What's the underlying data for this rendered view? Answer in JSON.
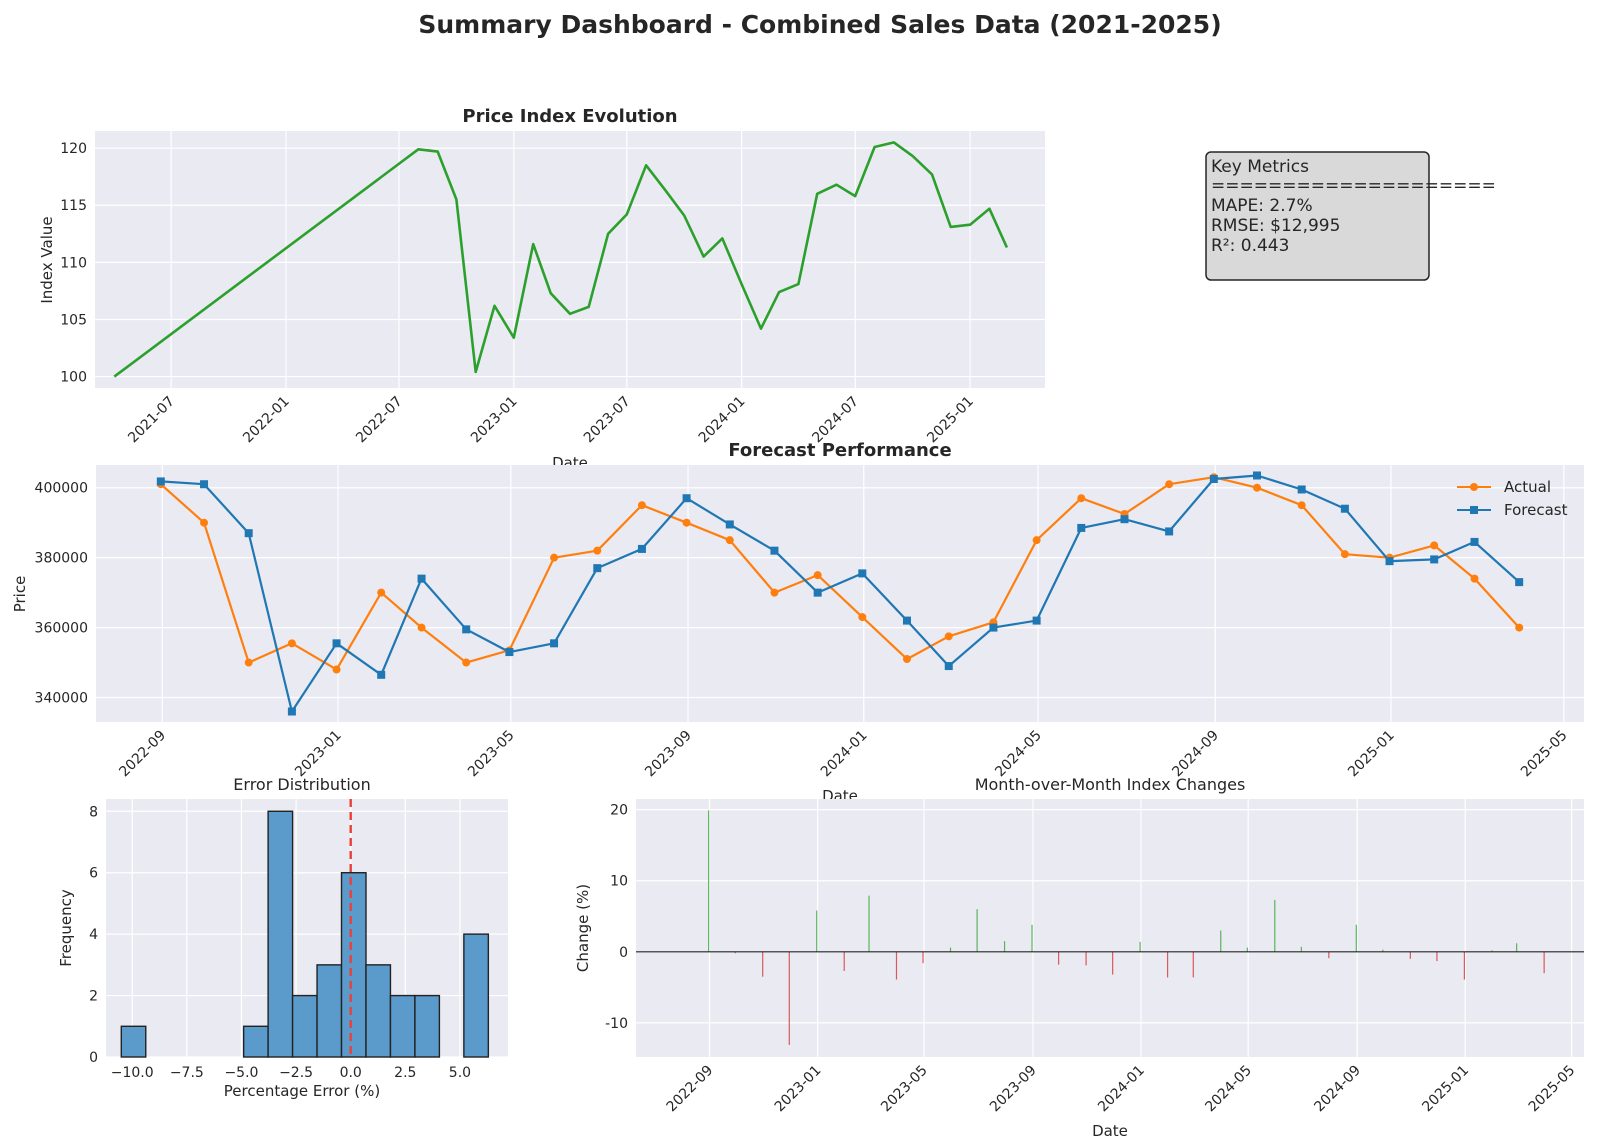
{
  "title": "Summary Dashboard - Combined Sales Data (2021-2025)",
  "colors": {
    "panel_bg": "#eaeaf2",
    "grid": "#ffffff",
    "green": "#2ca02c",
    "orange": "#ff7f0e",
    "blue": "#1f77b4",
    "hist": "#5b9bcb",
    "pos_bar": "#2ca02c",
    "neg_bar": "#d62728",
    "dash": "#e8413b",
    "metrics_bg": "#d9d9d9"
  },
  "metrics_box": {
    "lines": [
      "Key Metrics",
      "====================",
      "MAPE: 2.7%",
      "RMSE: $12,995",
      "R²: 0.443"
    ]
  },
  "chart_data": [
    {
      "id": "price_index",
      "type": "line",
      "title": "Price Index Evolution",
      "xlabel": "Date",
      "ylabel": "Index Value",
      "x_type": "date",
      "xlim": [
        "2021-03-01",
        "2025-05-01"
      ],
      "ylim": [
        99,
        121.5
      ],
      "xticks": [
        "2021-07",
        "2022-01",
        "2022-07",
        "2023-01",
        "2023-07",
        "2024-01",
        "2024-07",
        "2025-01"
      ],
      "yticks": [
        100,
        105,
        110,
        115,
        120
      ],
      "grid": true,
      "series": [
        {
          "color": "#2ca02c",
          "x": [
            "2021-04-01",
            "2022-08-01",
            "2022-09-01",
            "2022-10-01",
            "2022-11-01",
            "2022-12-01",
            "2023-01-01",
            "2023-02-01",
            "2023-03-01",
            "2023-04-01",
            "2023-05-01",
            "2023-06-01",
            "2023-07-01",
            "2023-08-01",
            "2023-09-01",
            "2023-10-01",
            "2023-11-01",
            "2023-12-01",
            "2024-01-01",
            "2024-02-01",
            "2024-03-01",
            "2024-04-01",
            "2024-05-01",
            "2024-06-01",
            "2024-07-01",
            "2024-08-01",
            "2024-09-01",
            "2024-10-01",
            "2024-11-01",
            "2024-12-01",
            "2025-01-01",
            "2025-02-01",
            "2025-03-01"
          ],
          "y": [
            100,
            119.9,
            119.7,
            115.5,
            100.4,
            106.2,
            103.4,
            111.6,
            107.3,
            105.5,
            106.1,
            112.5,
            114.2,
            118.5,
            116.3,
            114.1,
            110.5,
            112.1,
            108.1,
            104.2,
            107.4,
            108.1,
            116,
            116.8,
            115.8,
            120.1,
            120.5,
            119.3,
            117.7,
            113.1,
            113.3,
            114.7,
            111.3
          ]
        }
      ]
    },
    {
      "id": "forecast_perf",
      "type": "line",
      "title": "Forecast Performance",
      "xlabel": "Date",
      "ylabel": "Price",
      "x_type": "date",
      "xlim": [
        "2022-07-17",
        "2025-05-15"
      ],
      "ylim": [
        333000,
        406500
      ],
      "xticks": [
        "2022-09",
        "2023-01",
        "2023-05",
        "2023-09",
        "2024-01",
        "2024-05",
        "2024-09",
        "2025-01",
        "2025-05"
      ],
      "yticks": [
        340000,
        360000,
        380000,
        400000
      ],
      "grid": true,
      "legend": "top-right",
      "x": [
        "2022-08-31",
        "2022-09-30",
        "2022-10-31",
        "2022-11-30",
        "2022-12-31",
        "2023-01-31",
        "2023-02-28",
        "2023-03-31",
        "2023-04-30",
        "2023-05-31",
        "2023-06-30",
        "2023-07-31",
        "2023-08-31",
        "2023-09-30",
        "2023-10-31",
        "2023-11-30",
        "2023-12-31",
        "2024-01-31",
        "2024-02-29",
        "2024-03-31",
        "2024-04-30",
        "2024-05-31",
        "2024-06-30",
        "2024-07-31",
        "2024-08-31",
        "2024-09-30",
        "2024-10-31",
        "2024-11-30",
        "2024-12-31",
        "2025-01-31",
        "2025-02-28",
        "2025-03-31"
      ],
      "series": [
        {
          "name": "Actual",
          "color": "#ff7f0e",
          "marker": "circle",
          "values": [
            401000,
            390000,
            350000,
            355500,
            348000,
            370000,
            360000,
            350000,
            353500,
            380000,
            382000,
            395000,
            390000,
            385000,
            370000,
            375000,
            363000,
            351000,
            357500,
            361500,
            385000,
            397000,
            392500,
            401000,
            403000,
            400000,
            395000,
            381000,
            380000,
            383500,
            374000,
            360000
          ]
        },
        {
          "name": "Forecast",
          "color": "#1f77b4",
          "marker": "square",
          "values": [
            401800,
            401000,
            387000,
            336000,
            355500,
            346500,
            374000,
            359500,
            353000,
            355500,
            377000,
            382500,
            397000,
            389500,
            382000,
            370000,
            375500,
            362000,
            349000,
            360000,
            362000,
            388500,
            391000,
            387500,
            402500,
            403500,
            399500,
            394000,
            379000,
            379500,
            384500,
            373000
          ]
        }
      ]
    },
    {
      "id": "error_dist",
      "type": "bar",
      "title": "Error Distribution",
      "xlabel": "Percentage Error (%)",
      "ylabel": "Frequency",
      "xlim": [
        -11.2,
        7.2
      ],
      "ylim": [
        0,
        8.4
      ],
      "xticks": [
        -10,
        -7.5,
        -5,
        -2.5,
        0,
        2.5,
        5
      ],
      "xtick_labels": [
        "−10.0",
        "−7.5",
        "−5.0",
        "−2.5",
        "0.0",
        "2.5",
        "5.0"
      ],
      "yticks": [
        0,
        2,
        4,
        6,
        8
      ],
      "grid": true,
      "bin_edges": [
        -10.5,
        -9.38,
        -8.26,
        -7.14,
        -6.02,
        -4.9,
        -3.78,
        -2.66,
        -1.54,
        -0.42,
        0.7,
        1.82,
        2.94,
        4.06,
        5.18,
        6.3
      ],
      "values": [
        1,
        0,
        0,
        0,
        0,
        1,
        8,
        2,
        3,
        6,
        3,
        2,
        2,
        0,
        4
      ],
      "reference_line": {
        "x": 0,
        "style": "dashed",
        "color": "#e8413b"
      }
    },
    {
      "id": "mom_changes",
      "type": "bar",
      "title": "Month-over-Month Index Changes",
      "xlabel": "Date",
      "ylabel": "Change (%)",
      "x_type": "date",
      "xlim": [
        "2022-06-10",
        "2025-05-15"
      ],
      "ylim": [
        -14.8,
        21.5
      ],
      "xticks": [
        "2022-09",
        "2023-01",
        "2023-05",
        "2023-09",
        "2024-01",
        "2024-05",
        "2024-09",
        "2025-01",
        "2025-05"
      ],
      "yticks": [
        -10,
        0,
        10,
        20
      ],
      "grid": true,
      "x": [
        "2022-08-31",
        "2022-09-30",
        "2022-10-31",
        "2022-11-30",
        "2022-12-31",
        "2023-01-31",
        "2023-02-28",
        "2023-03-31",
        "2023-04-30",
        "2023-05-31",
        "2023-06-30",
        "2023-07-31",
        "2023-08-31",
        "2023-09-30",
        "2023-10-31",
        "2023-11-30",
        "2023-12-31",
        "2024-01-31",
        "2024-02-29",
        "2024-03-31",
        "2024-04-30",
        "2024-05-31",
        "2024-06-30",
        "2024-07-31",
        "2024-08-31",
        "2024-09-30",
        "2024-10-31",
        "2024-11-30",
        "2024-12-31",
        "2025-01-31",
        "2025-02-28",
        "2025-03-31"
      ],
      "values": [
        19.9,
        -0.2,
        -3.5,
        -13.1,
        5.8,
        -2.7,
        7.9,
        -3.9,
        -1.6,
        0.6,
        6.0,
        1.5,
        3.8,
        -1.8,
        -1.9,
        -3.2,
        1.4,
        -3.6,
        -3.6,
        3.0,
        0.6,
        7.3,
        0.7,
        -0.9,
        3.8,
        0.3,
        -1.0,
        -1.3,
        -3.9,
        0.2,
        1.2,
        -3.0
      ]
    }
  ]
}
